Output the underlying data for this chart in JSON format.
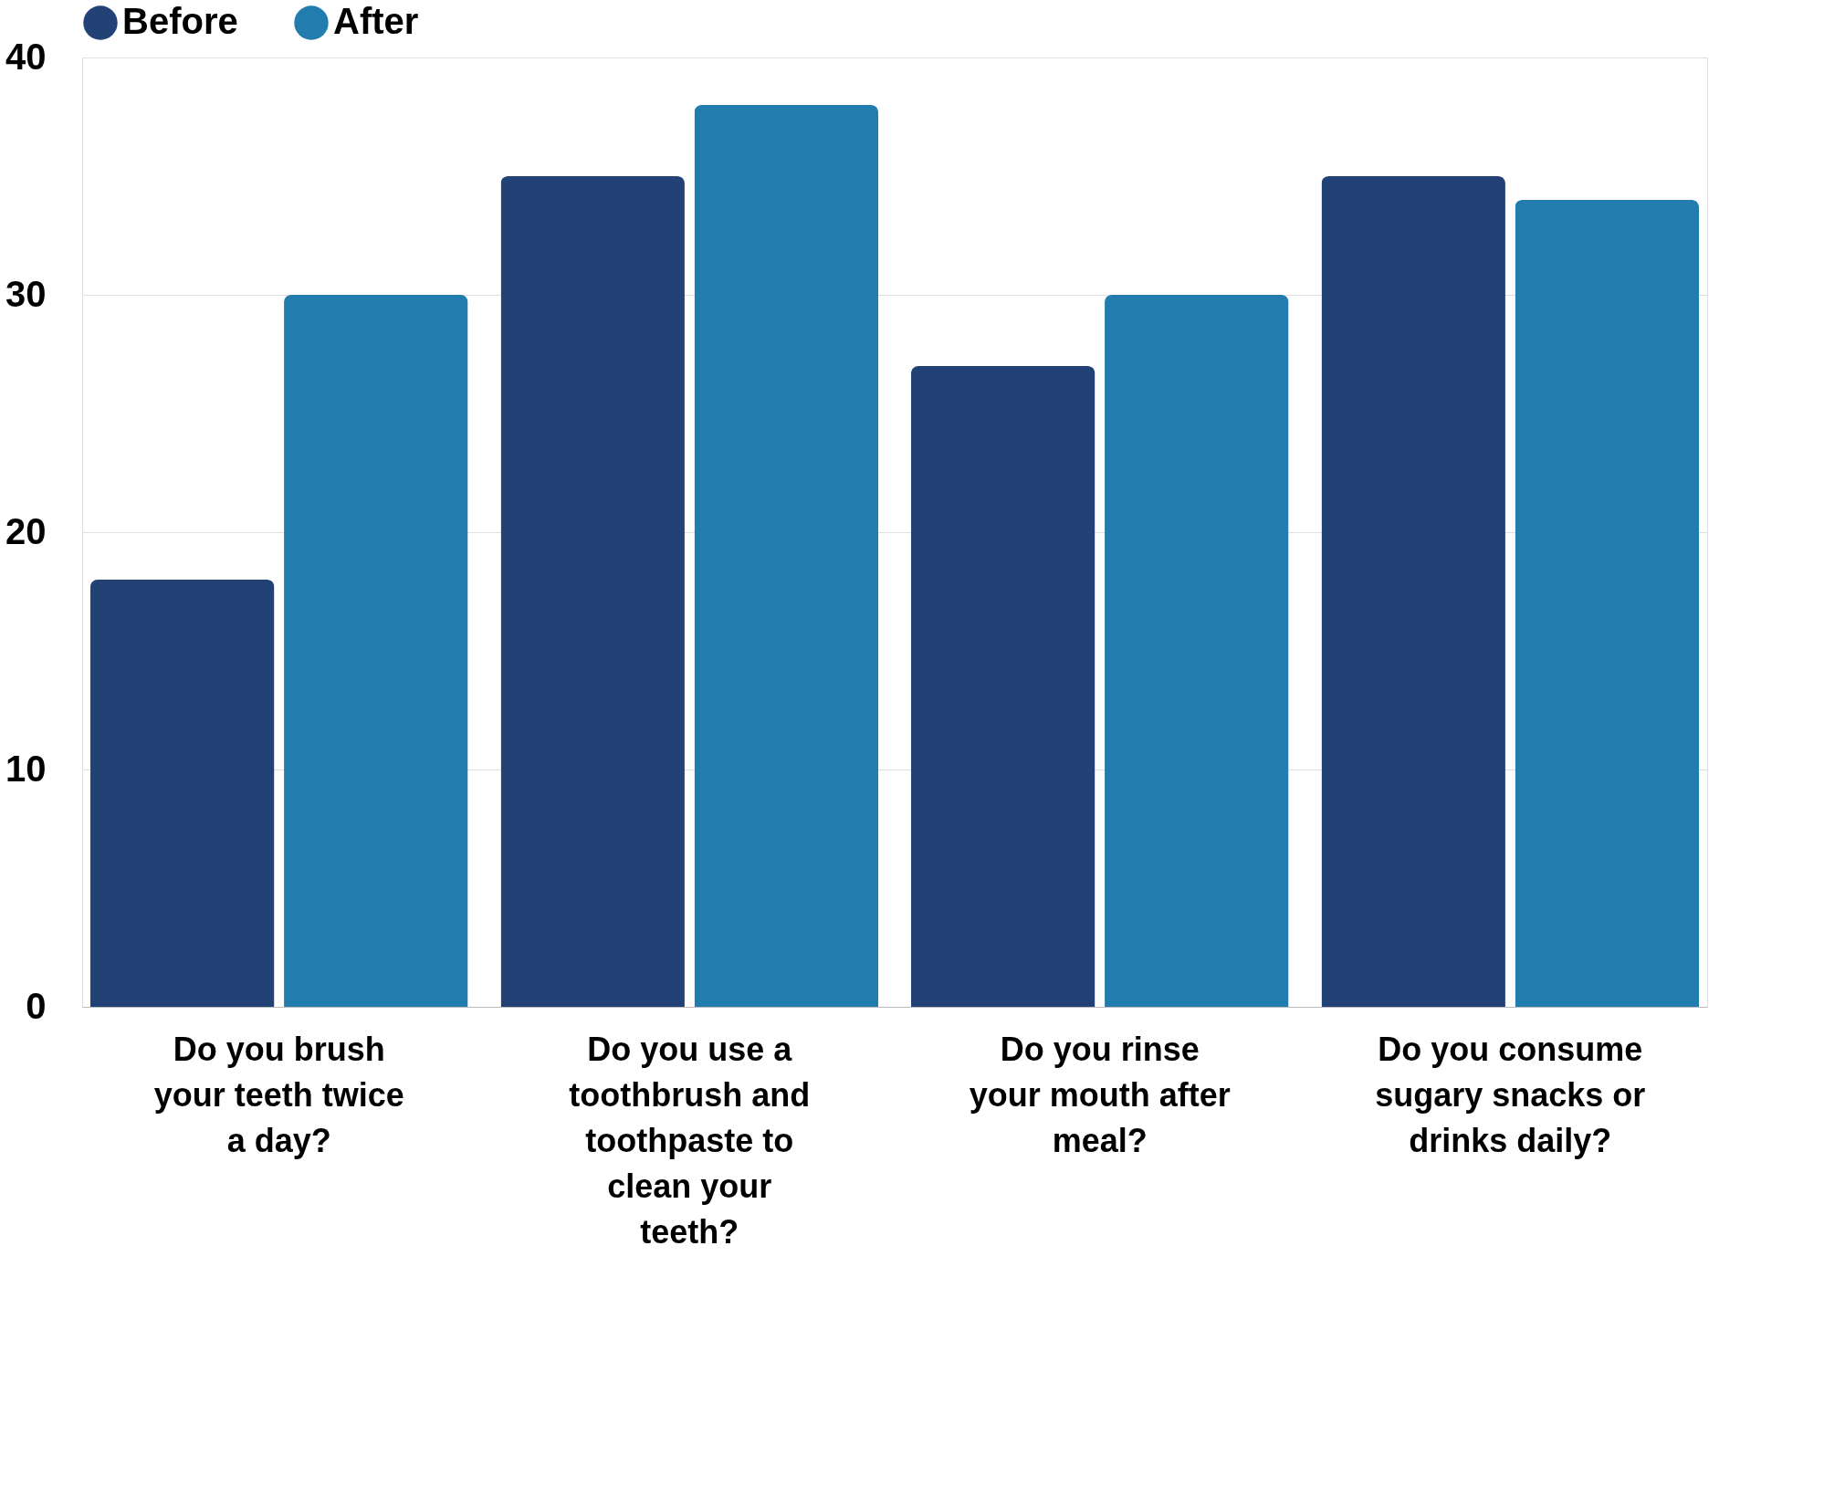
{
  "chart_data": {
    "type": "bar",
    "categories": [
      "Do you brush your teeth twice a day?",
      "Do you use a toothbrush and toothpaste to clean your teeth?",
      "Do you rinse your mouth after meal?",
      "Do you consume sugary snacks or drinks daily?"
    ],
    "series": [
      {
        "name": "Before",
        "color": "#224276",
        "values": [
          18,
          35,
          27,
          35
        ]
      },
      {
        "name": "After",
        "color": "#227cae",
        "values": [
          30,
          38,
          30,
          34
        ]
      }
    ],
    "ylim": [
      0,
      40
    ],
    "yticks": [
      0,
      10,
      20,
      30,
      40
    ],
    "grid": "y",
    "legend": "top"
  }
}
